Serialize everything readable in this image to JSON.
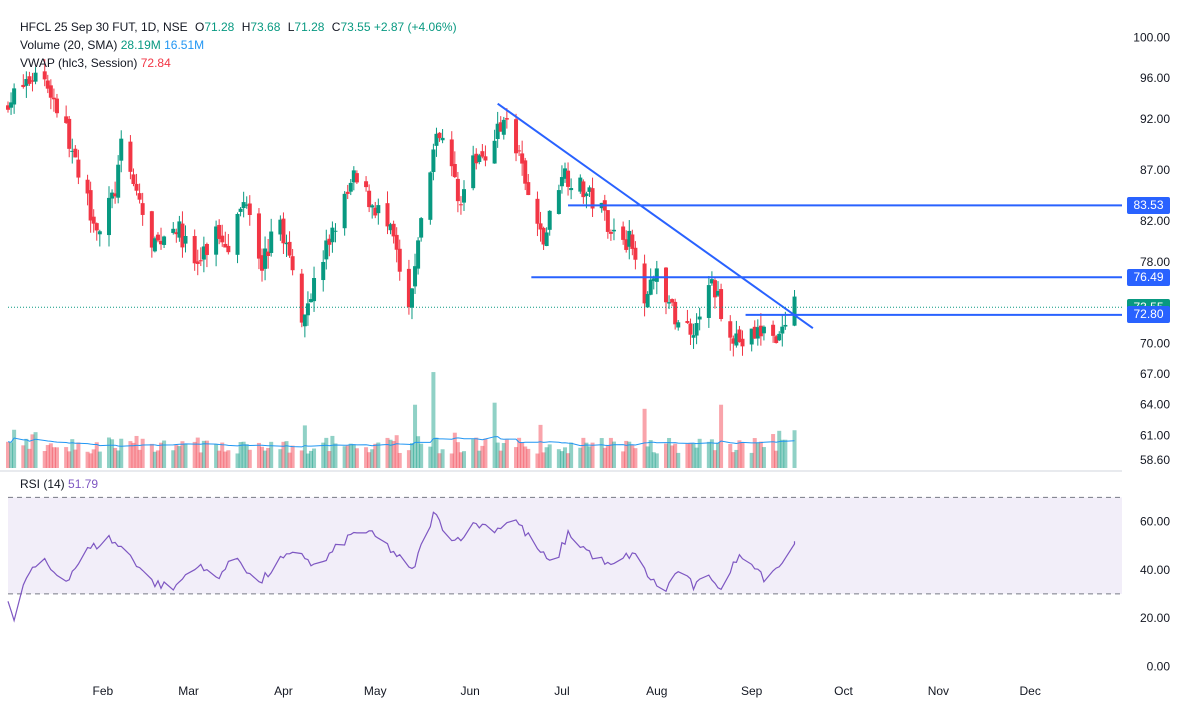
{
  "legend": {
    "symbol": "HFCL 25 Sep 30 FUT, 1D, NSE",
    "o_label": "O",
    "o": "71.28",
    "h_label": "H",
    "h": "73.68",
    "l_label": "L",
    "l": "71.28",
    "c_label": "C",
    "c": "73.55",
    "change": "+2.87 (+4.06%)",
    "volume_label": "Volume (20, SMA)",
    "volume_value": "28.19M",
    "volume_sma": "16.51M",
    "vwap_label": "VWAP (hlc3, Session)",
    "vwap_value": "72.84",
    "rsi_label": "RSI (14)",
    "rsi_value": "51.79"
  },
  "price_labels": [
    {
      "text": "83.53",
      "value": 83.53,
      "color": "#2962ff"
    },
    {
      "text": "76.49",
      "value": 76.49,
      "color": "#2962ff"
    },
    {
      "text": "73.55",
      "value": 73.55,
      "color": "#089981"
    },
    {
      "text": "72.80",
      "value": 72.8,
      "color": "#2962ff"
    }
  ],
  "colors": {
    "up": "#089981",
    "down": "#f23645",
    "line": "#2962ff",
    "rsi": "#7e57c2",
    "vol_ma": "#2196f3"
  },
  "chart_data": {
    "type": "candlestick",
    "title": "HFCL 25 Sep 30 FUT, 1D, NSE",
    "y_ticks": [
      "100.00",
      "96.00",
      "92.00",
      "87.00",
      "82.00",
      "78.00",
      "73.55",
      "70.00",
      "67.00",
      "64.00",
      "61.00",
      "58.60"
    ],
    "y_tick_values": [
      100,
      96,
      92,
      87,
      82,
      78,
      73.55,
      70,
      67,
      64,
      61,
      58.6
    ],
    "x_ticks": [
      "Feb",
      "Mar",
      "Apr",
      "May",
      "Jun",
      "Jul",
      "Aug",
      "Sep",
      "Oct",
      "Nov",
      "Dec"
    ],
    "close_anchors": [
      [
        "Jan-2",
        94
      ],
      [
        "Jan-12",
        97
      ],
      [
        "Jan-21",
        90
      ],
      [
        "Jan-24",
        86
      ],
      [
        "Jan-31",
        81
      ],
      [
        "Feb-5",
        85
      ],
      [
        "Feb-7",
        89
      ],
      [
        "Feb-13",
        84
      ],
      [
        "Feb-17",
        79
      ],
      [
        "Feb-24",
        82
      ],
      [
        "Mar-4",
        77.5
      ],
      [
        "Mar-10",
        81
      ],
      [
        "Mar-14",
        80
      ],
      [
        "Mar-20",
        84.5
      ],
      [
        "Mar-25",
        78
      ],
      [
        "Mar-31",
        82
      ],
      [
        "Apr-7",
        73
      ],
      [
        "Apr-10",
        75
      ],
      [
        "Apr-17",
        81
      ],
      [
        "Apr-24",
        86
      ],
      [
        "May-2",
        83
      ],
      [
        "May-7",
        80
      ],
      [
        "May-12",
        72.5
      ],
      [
        "May-14",
        78
      ],
      [
        "May-20",
        89
      ],
      [
        "May-23",
        91
      ],
      [
        "May-28",
        84
      ],
      [
        "Jun-3",
        88
      ],
      [
        "Jun-9",
        90
      ],
      [
        "Jun-13",
        92.5
      ],
      [
        "Jun-17",
        88
      ],
      [
        "Jun-20",
        84
      ],
      [
        "Jun-25",
        80
      ],
      [
        "Jul-1",
        87
      ],
      [
        "Jul-8",
        85
      ],
      [
        "Jul-14",
        83
      ],
      [
        "Jul-18",
        81
      ],
      [
        "Jul-23",
        80
      ],
      [
        "Jul-28",
        75
      ],
      [
        "Aug-1",
        77
      ],
      [
        "Aug-6",
        73
      ],
      [
        "Aug-11",
        71.5
      ],
      [
        "Aug-14",
        72
      ],
      [
        "Aug-19",
        76
      ],
      [
        "Aug-22",
        73.5
      ],
      [
        "Aug-26",
        71
      ],
      [
        "Aug-29",
        70
      ],
      [
        "Sep-3",
        71
      ],
      [
        "Sep-8",
        71.5
      ],
      [
        "Sep-10",
        70.5
      ],
      [
        "Sep-12",
        71.3
      ],
      [
        "Sep-15",
        73.55
      ]
    ],
    "volume_spikes": [
      [
        "May-20",
        67.2
      ],
      [
        "Jun-9",
        64.2
      ],
      [
        "May-14",
        64.0
      ],
      [
        "Jul-28",
        63.6
      ],
      [
        "Aug-22",
        64.0
      ],
      [
        "Sep-15",
        61.5
      ]
    ],
    "rsi_anchors": [
      [
        "Jan-1",
        28
      ],
      [
        "Jan-3",
        18
      ],
      [
        "Jan-7",
        37
      ],
      [
        "Jan-12",
        44
      ],
      [
        "Jan-16",
        39
      ],
      [
        "Jan-20",
        36
      ],
      [
        "Jan-27",
        48
      ],
      [
        "Feb-3",
        53
      ],
      [
        "Feb-10",
        46
      ],
      [
        "Feb-17",
        35
      ],
      [
        "Feb-24",
        32
      ],
      [
        "Mar-3",
        42
      ],
      [
        "Mar-10",
        37
      ],
      [
        "Mar-17",
        45
      ],
      [
        "Mar-24",
        34
      ],
      [
        "Mar-31",
        44
      ],
      [
        "Apr-7",
        47
      ],
      [
        "Apr-12",
        40
      ],
      [
        "Apr-19",
        50
      ],
      [
        "Apr-26",
        57
      ],
      [
        "May-3",
        52
      ],
      [
        "May-8",
        46
      ],
      [
        "May-13",
        39
      ],
      [
        "May-20",
        63
      ],
      [
        "May-27",
        52
      ],
      [
        "Jun-3",
        59
      ],
      [
        "Jun-10",
        57
      ],
      [
        "Jun-15",
        62
      ],
      [
        "Jun-21",
        52
      ],
      [
        "Jun-28",
        41
      ],
      [
        "Jul-3",
        55
      ],
      [
        "Jul-10",
        47
      ],
      [
        "Jul-17",
        41
      ],
      [
        "Jul-24",
        47
      ],
      [
        "Jul-29",
        38
      ],
      [
        "Aug-3",
        30
      ],
      [
        "Aug-8",
        40
      ],
      [
        "Aug-13",
        33
      ],
      [
        "Aug-19",
        37
      ],
      [
        "Aug-23",
        31
      ],
      [
        "Aug-27",
        45
      ],
      [
        "Sep-1",
        44
      ],
      [
        "Sep-5",
        37
      ],
      [
        "Sep-10",
        42
      ],
      [
        "Sep-13",
        45
      ],
      [
        "Sep-15",
        51.79
      ]
    ],
    "rsi_levels": [
      70,
      30
    ],
    "rsi_ticks": [
      "60.00",
      "40.00",
      "20.00",
      "0.00"
    ],
    "rsi_tick_values": [
      60,
      40,
      20,
      0
    ],
    "trendline": {
      "from": [
        "Jun-10",
        93.5
      ],
      "to": [
        "Sep-21",
        71.5
      ]
    },
    "horizontal_lines": [
      {
        "from": "Jul-3",
        "to": "Dec-31",
        "value": 83.53
      },
      {
        "from": "Jun-21",
        "to": "Dec-31",
        "value": 76.49
      },
      {
        "from": "Aug-30",
        "to": "Dec-31",
        "value": 72.8
      }
    ],
    "x_range": [
      "Jan-1",
      "Dec-31"
    ],
    "y_range": [
      57.8,
      101.5
    ],
    "rsi_range": [
      -4,
      78
    ],
    "grid": false,
    "legend_position": "top-left"
  }
}
